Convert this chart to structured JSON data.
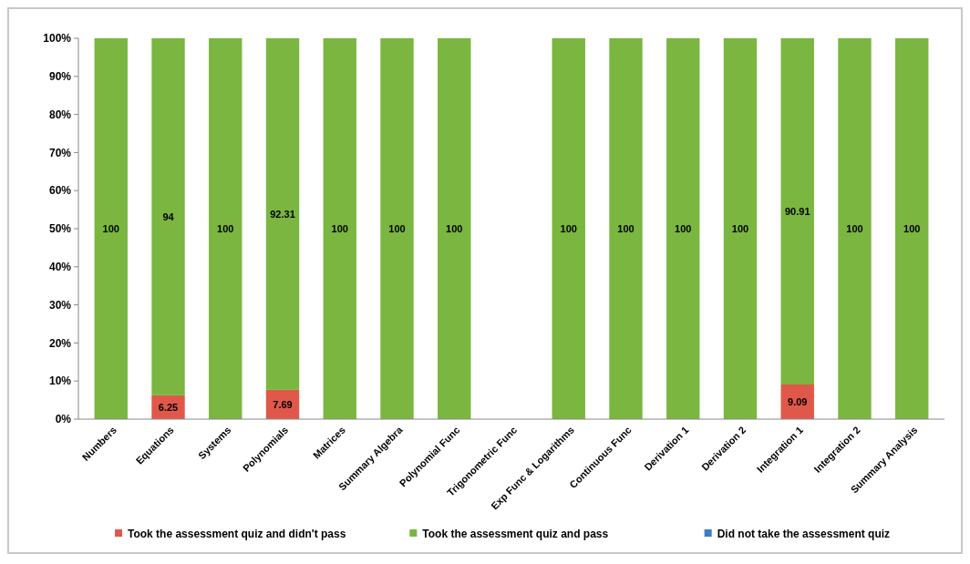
{
  "chart_data": {
    "type": "bar",
    "stacked": true,
    "categories": [
      "Numbers",
      "Equations",
      "Systems",
      "Polynomials",
      "Matrices",
      "Summary Algebra",
      "Polynomial Func",
      "Trigonometric Func",
      "Exp Func & Logarithms",
      "Continuous Func",
      "Derivation 1",
      "Derivation 2",
      "Integration 1",
      "Integration 2",
      "Summary Analysis"
    ],
    "series": [
      {
        "name": "Took the assessment quiz and didn't pass",
        "color": "#e0584a",
        "values": [
          null,
          6.25,
          null,
          7.69,
          null,
          null,
          null,
          null,
          null,
          null,
          null,
          null,
          9.09,
          null,
          null
        ],
        "value_labels": [
          null,
          "6.25",
          null,
          "7.69",
          null,
          null,
          null,
          null,
          null,
          null,
          null,
          null,
          "9.09",
          null,
          null
        ]
      },
      {
        "name": "Took the assessment quiz and pass",
        "color": "#7ab640",
        "values": [
          100,
          93.75,
          100,
          92.31,
          100,
          100,
          100,
          null,
          100,
          100,
          100,
          100,
          90.91,
          100,
          100
        ],
        "value_labels": [
          "100",
          "94",
          "100",
          "92.31",
          "100",
          "100",
          "100",
          null,
          "100",
          "100",
          "100",
          "100",
          "90.91",
          "100",
          "100"
        ]
      },
      {
        "name": "Did not take the  assessment quiz",
        "color": "#3c7dc4",
        "values": [
          null,
          null,
          null,
          null,
          null,
          null,
          null,
          null,
          null,
          null,
          null,
          null,
          null,
          null,
          null
        ]
      }
    ],
    "ylim": [
      0,
      100
    ],
    "yticks": [
      {
        "value": 0,
        "label": "0%"
      },
      {
        "value": 10,
        "label": "10%"
      },
      {
        "value": 20,
        "label": "20%"
      },
      {
        "value": 30,
        "label": "30%"
      },
      {
        "value": 40,
        "label": "40%"
      },
      {
        "value": 50,
        "label": "50%"
      },
      {
        "value": 60,
        "label": "60%"
      },
      {
        "value": 70,
        "label": "70%"
      },
      {
        "value": 80,
        "label": "80%"
      },
      {
        "value": 90,
        "label": "90%"
      },
      {
        "value": 100,
        "label": "100%"
      }
    ],
    "legend": "bottom"
  }
}
